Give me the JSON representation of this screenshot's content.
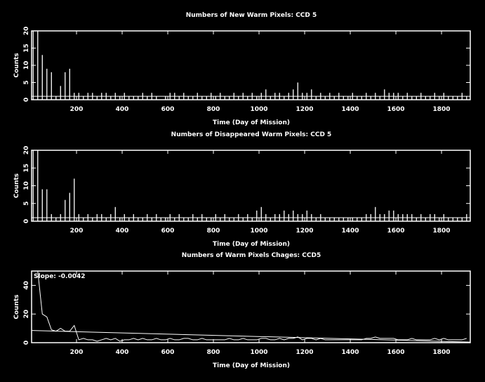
{
  "colors": {
    "background": "#000000",
    "foreground": "#ffffff"
  },
  "chart_data": [
    {
      "type": "bar",
      "title": "Numbers of New Warm Pixels: CCD 5",
      "xlabel": "Time (Day of Mission)",
      "ylabel": "Counts",
      "xlim": [
        3,
        1926
      ],
      "ylim": [
        0,
        20
      ],
      "xticks": [
        200,
        400,
        600,
        800,
        1000,
        1200,
        1400,
        1600,
        1800
      ],
      "yticks": [
        0,
        5,
        10,
        15,
        20
      ],
      "x": [
        10,
        30,
        50,
        70,
        90,
        110,
        130,
        150,
        170,
        190,
        210,
        230,
        250,
        270,
        290,
        310,
        330,
        350,
        370,
        390,
        410,
        430,
        450,
        470,
        490,
        510,
        530,
        550,
        570,
        590,
        610,
        630,
        650,
        670,
        690,
        710,
        730,
        750,
        770,
        790,
        810,
        830,
        850,
        870,
        890,
        910,
        930,
        950,
        970,
        990,
        1010,
        1030,
        1050,
        1070,
        1090,
        1110,
        1130,
        1150,
        1170,
        1190,
        1210,
        1230,
        1250,
        1270,
        1290,
        1310,
        1330,
        1350,
        1370,
        1390,
        1410,
        1430,
        1450,
        1470,
        1490,
        1510,
        1530,
        1550,
        1570,
        1590,
        1610,
        1630,
        1650,
        1670,
        1690,
        1710,
        1730,
        1750,
        1770,
        1790,
        1810,
        1830,
        1850,
        1870,
        1890,
        1910
      ],
      "values": [
        20,
        20,
        13,
        9,
        8,
        1,
        4,
        8,
        9,
        2,
        2,
        1,
        2,
        2,
        1,
        2,
        2,
        1,
        2,
        1,
        2,
        1,
        1,
        1,
        2,
        1,
        2,
        1,
        0,
        1,
        2,
        2,
        1,
        2,
        1,
        1,
        2,
        1,
        1,
        2,
        1,
        2,
        1,
        1,
        2,
        1,
        2,
        1,
        2,
        1,
        2,
        3,
        1,
        2,
        2,
        1,
        2,
        3,
        5,
        2,
        2,
        3,
        1,
        2,
        1,
        2,
        1,
        2,
        1,
        1,
        2,
        1,
        1,
        2,
        1,
        2,
        1,
        3,
        2,
        2,
        2,
        1,
        2,
        1,
        1,
        2,
        1,
        1,
        2,
        1,
        2,
        1,
        1,
        1,
        2,
        1
      ]
    },
    {
      "type": "bar",
      "title": "Numbers of Disappeared Warm Pixels: CCD 5",
      "xlabel": "Time (Day of Mission)",
      "ylabel": "Counts",
      "xlim": [
        3,
        1926
      ],
      "ylim": [
        0,
        20
      ],
      "xticks": [
        200,
        400,
        600,
        800,
        1000,
        1200,
        1400,
        1600,
        1800
      ],
      "yticks": [
        0,
        5,
        10,
        15,
        20
      ],
      "x": [
        10,
        30,
        50,
        70,
        90,
        110,
        130,
        150,
        170,
        190,
        210,
        230,
        250,
        270,
        290,
        310,
        330,
        350,
        370,
        390,
        410,
        430,
        450,
        470,
        490,
        510,
        530,
        550,
        570,
        590,
        610,
        630,
        650,
        670,
        690,
        710,
        730,
        750,
        770,
        790,
        810,
        830,
        850,
        870,
        890,
        910,
        930,
        950,
        970,
        990,
        1010,
        1030,
        1050,
        1070,
        1090,
        1110,
        1130,
        1150,
        1170,
        1190,
        1210,
        1230,
        1250,
        1270,
        1290,
        1310,
        1330,
        1350,
        1370,
        1390,
        1410,
        1430,
        1450,
        1470,
        1490,
        1510,
        1530,
        1550,
        1570,
        1590,
        1610,
        1630,
        1650,
        1670,
        1690,
        1710,
        1730,
        1750,
        1770,
        1790,
        1810,
        1830,
        1850,
        1870,
        1890,
        1910
      ],
      "values": [
        20,
        20,
        9,
        9,
        2,
        1,
        2,
        6,
        8,
        12,
        2,
        1,
        2,
        1,
        2,
        2,
        1,
        2,
        4,
        1,
        2,
        1,
        2,
        1,
        1,
        2,
        1,
        2,
        1,
        1,
        2,
        1,
        2,
        1,
        1,
        2,
        1,
        2,
        1,
        1,
        2,
        1,
        2,
        1,
        1,
        2,
        1,
        2,
        1,
        3,
        4,
        2,
        1,
        2,
        2,
        3,
        2,
        3,
        2,
        2,
        3,
        2,
        1,
        2,
        1,
        1,
        1,
        1,
        1,
        1,
        1,
        1,
        1,
        2,
        2,
        4,
        2,
        2,
        3,
        3,
        2,
        2,
        2,
        2,
        1,
        2,
        1,
        2,
        2,
        1,
        2,
        1,
        1,
        1,
        1,
        2
      ]
    },
    {
      "type": "line",
      "title": "Numbers of Warm Pixels Chages: CCD5",
      "xlabel": "Time (Day of Mission)",
      "ylabel": "Counts",
      "annotation": "Slope: -0.0042",
      "fit": {
        "slope": -0.0042,
        "intercept": 8.5
      },
      "xlim": [
        3,
        1926
      ],
      "ylim": [
        0,
        50
      ],
      "xticks": [
        200,
        400,
        600,
        800,
        1000,
        1200,
        1400,
        1600,
        1800
      ],
      "yticks": [
        0,
        20,
        40
      ],
      "x": [
        10,
        30,
        50,
        70,
        90,
        110,
        130,
        150,
        170,
        190,
        210,
        230,
        250,
        270,
        290,
        310,
        330,
        350,
        370,
        390,
        410,
        430,
        450,
        470,
        490,
        510,
        530,
        550,
        570,
        590,
        610,
        630,
        650,
        670,
        690,
        710,
        730,
        750,
        770,
        790,
        810,
        830,
        850,
        870,
        890,
        910,
        930,
        950,
        970,
        990,
        1010,
        1030,
        1050,
        1070,
        1090,
        1110,
        1130,
        1150,
        1170,
        1190,
        1210,
        1230,
        1250,
        1270,
        1290,
        1310,
        1330,
        1350,
        1370,
        1390,
        1410,
        1430,
        1450,
        1470,
        1490,
        1510,
        1530,
        1550,
        1570,
        1590,
        1610,
        1630,
        1650,
        1670,
        1690,
        1710,
        1730,
        1750,
        1770,
        1790,
        1810,
        1830,
        1850,
        1870,
        1890,
        1910
      ],
      "values": [
        50,
        50,
        20,
        18,
        9,
        8,
        10,
        8,
        8,
        12,
        2,
        3,
        2,
        2,
        1,
        2,
        3,
        2,
        3,
        1,
        2,
        2,
        3,
        2,
        3,
        2,
        2,
        3,
        2,
        2,
        3,
        2,
        2,
        3,
        3,
        2,
        2,
        3,
        2,
        2,
        2,
        2,
        2,
        3,
        2,
        2,
        3,
        2,
        2,
        2,
        3,
        3,
        2,
        2,
        3,
        2,
        3,
        3,
        4,
        2,
        3,
        3,
        2,
        3,
        2,
        2,
        2,
        2,
        2,
        2,
        2,
        2,
        2,
        3,
        3,
        4,
        3,
        3,
        3,
        3,
        2,
        2,
        2,
        3,
        2,
        2,
        2,
        2,
        3,
        2,
        3,
        2,
        2,
        2,
        2,
        3
      ]
    }
  ]
}
